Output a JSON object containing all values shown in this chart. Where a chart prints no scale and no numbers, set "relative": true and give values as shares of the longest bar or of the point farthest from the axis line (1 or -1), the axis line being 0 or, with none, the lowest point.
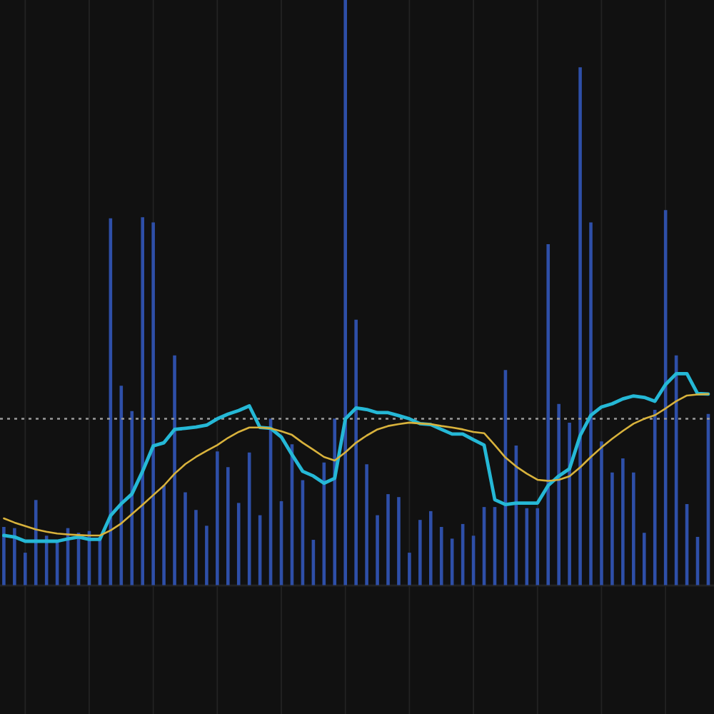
{
  "chart_data": [
    {
      "type": "bar",
      "relative": true,
      "grid": true,
      "categories": [
        null,
        null,
        null,
        null,
        null,
        null,
        null,
        null,
        null,
        null,
        null,
        null,
        null,
        null,
        null,
        null,
        null,
        null,
        null,
        null,
        null,
        null,
        null,
        null,
        null,
        null,
        null,
        null,
        null,
        null,
        null,
        null,
        null,
        null,
        null,
        null,
        null,
        null,
        null,
        null,
        null,
        null,
        null,
        null,
        null,
        null,
        null,
        null,
        null,
        null,
        null,
        null,
        null,
        null,
        null,
        null,
        null,
        null,
        null,
        null,
        null,
        null,
        null,
        null,
        null,
        null,
        null
      ],
      "series": [
        {
          "color": "#2e4fa8",
          "values": [
            0.1,
            0.098,
            0.056,
            0.146,
            0.085,
            0.076,
            0.098,
            0.09,
            0.093,
            0.083,
            0.627,
            0.341,
            0.298,
            0.629,
            0.62,
            0.171,
            0.393,
            0.159,
            0.129,
            0.102,
            0.229,
            0.202,
            0.141,
            0.227,
            0.12,
            0.285,
            0.144,
            0.241,
            0.18,
            0.078,
            0.21,
            0.285,
            1,
            0.454,
            0.207,
            0.12,
            0.156,
            0.151,
            0.056,
            0.112,
            0.127,
            0.1,
            0.08,
            0.105,
            0.085,
            0.134,
            0.134,
            0.368,
            0.239,
            0.132,
            0.132,
            0.583,
            0.31,
            0.278,
            0.885,
            0.62,
            0.246,
            0.193,
            0.217,
            0.193,
            0.09,
            0.3,
            0.641,
            0.393,
            0.139,
            0.083,
            0.293
          ]
        }
      ]
    },
    {
      "type": "line",
      "relative": true,
      "categories": [
        null,
        null,
        null,
        null,
        null,
        null,
        null,
        null,
        null,
        null,
        null,
        null,
        null,
        null,
        null,
        null,
        null,
        null,
        null,
        null,
        null,
        null,
        null,
        null,
        null,
        null,
        null,
        null,
        null,
        null,
        null,
        null,
        null,
        null,
        null,
        null,
        null,
        null,
        null,
        null,
        null,
        null,
        null,
        null,
        null,
        null,
        null,
        null,
        null,
        null,
        null,
        null,
        null,
        null,
        null,
        null,
        null,
        null,
        null,
        null,
        null,
        null,
        null,
        null,
        null,
        null,
        null
      ],
      "series": [
        {
          "color": "#25b8d6",
          "values": [
            0.236,
            0.229,
            0.209,
            0.209,
            0.209,
            0.209,
            0.22,
            0.229,
            0.218,
            0.218,
            0.33,
            0.386,
            0.432,
            0.539,
            0.659,
            0.674,
            0.737,
            0.742,
            0.748,
            0.757,
            0.787,
            0.809,
            0.826,
            0.848,
            0.746,
            0.742,
            0.701,
            0.618,
            0.539,
            0.517,
            0.483,
            0.506,
            0.787,
            0.838,
            0.831,
            0.816,
            0.816,
            0.802,
            0.787,
            0.764,
            0.76,
            0.737,
            0.715,
            0.715,
            0.688,
            0.663,
            0.405,
            0.382,
            0.389,
            0.389,
            0.389,
            0.472,
            0.517,
            0.551,
            0.708,
            0.804,
            0.843,
            0.858,
            0.881,
            0.895,
            0.888,
            0.87,
            0.949,
            1,
            1,
            0.906,
            0.904
          ]
        },
        {
          "color": "#d8b23c",
          "values": [
            0.317,
            0.297,
            0.281,
            0.265,
            0.254,
            0.245,
            0.241,
            0.238,
            0.236,
            0.236,
            0.26,
            0.293,
            0.337,
            0.381,
            0.427,
            0.472,
            0.528,
            0.573,
            0.607,
            0.636,
            0.663,
            0.697,
            0.725,
            0.746,
            0.746,
            0.742,
            0.728,
            0.711,
            0.674,
            0.641,
            0.607,
            0.59,
            0.629,
            0.674,
            0.708,
            0.737,
            0.753,
            0.762,
            0.769,
            0.765,
            0.762,
            0.753,
            0.746,
            0.737,
            0.725,
            0.719,
            0.663,
            0.604,
            0.562,
            0.528,
            0.499,
            0.494,
            0.499,
            0.516,
            0.558,
            0.607,
            0.652,
            0.693,
            0.73,
            0.764,
            0.787,
            0.804,
            0.836,
            0.87,
            0.897,
            0.902,
            0.904
          ]
        }
      ],
      "ref_lines": [
        {
          "axis": "y",
          "value": 0.787,
          "color": "#9a9a9a",
          "line_style": "dotted"
        }
      ]
    }
  ]
}
